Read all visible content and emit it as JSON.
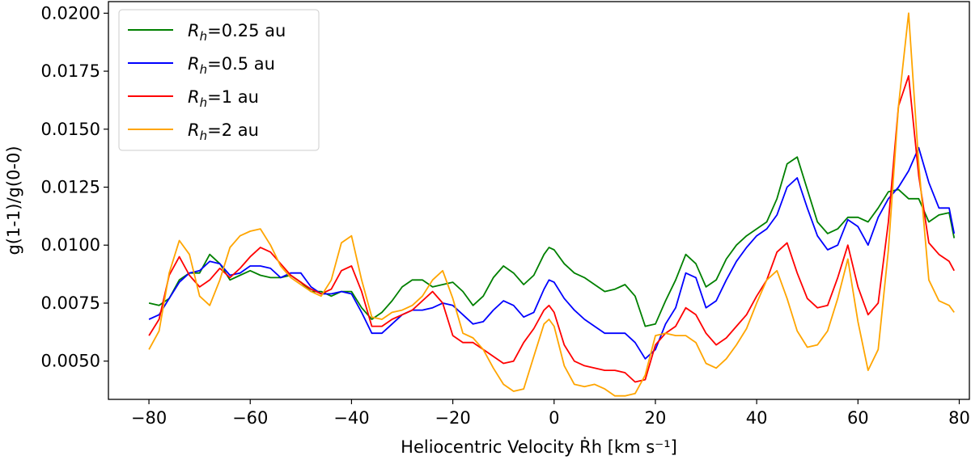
{
  "chart_data": {
    "type": "line",
    "title": "",
    "xlabel": "Heliocentric Velocity Ṙh [km s⁻¹]",
    "ylabel": "g(1-1)/g(0-0)",
    "xlim": [
      -88,
      82
    ],
    "ylim": [
      0.00335,
      0.0205
    ],
    "xticks": [
      -80,
      -60,
      -40,
      -20,
      0,
      20,
      40,
      60,
      80
    ],
    "xtick_labels": [
      "−80",
      "−60",
      "−40",
      "−20",
      "0",
      "20",
      "40",
      "60",
      "80"
    ],
    "yticks": [
      0.005,
      0.0075,
      0.01,
      0.0125,
      0.015,
      0.0175,
      0.02
    ],
    "ytick_labels": [
      "0.0050",
      "0.0075",
      "0.0100",
      "0.0125",
      "0.0150",
      "0.0175",
      "0.0200"
    ],
    "legend_position": "top-left",
    "series": [
      {
        "name": "Rh=0.25 au",
        "legend_var": "R",
        "legend_sub": "h",
        "legend_rest": "=0.25 au",
        "color": "#008000",
        "x": [
          -80,
          -78,
          -76,
          -74,
          -72,
          -70,
          -68,
          -66,
          -64,
          -62,
          -60,
          -58,
          -56,
          -54,
          -52,
          -50,
          -48,
          -46,
          -44,
          -42,
          -40,
          -38,
          -36,
          -34,
          -32,
          -30,
          -28,
          -26,
          -24,
          -22,
          -20,
          -18,
          -16,
          -14,
          -12,
          -10,
          -8,
          -6,
          -4,
          -2,
          -1,
          0,
          2,
          4,
          6,
          8,
          10,
          12,
          14,
          16,
          18,
          20,
          22,
          24,
          26,
          28,
          30,
          32,
          34,
          36,
          38,
          40,
          42,
          44,
          46,
          48,
          50,
          52,
          54,
          56,
          58,
          60,
          62,
          64,
          66,
          68,
          70,
          72,
          74,
          76,
          78,
          79
        ],
        "values": [
          0.0075,
          0.0074,
          0.0077,
          0.0085,
          0.0088,
          0.0088,
          0.0096,
          0.0092,
          0.0085,
          0.0087,
          0.0089,
          0.0087,
          0.0086,
          0.0086,
          0.0087,
          0.0084,
          0.008,
          0.008,
          0.0078,
          0.008,
          0.008,
          0.0073,
          0.0068,
          0.0071,
          0.0076,
          0.0082,
          0.0085,
          0.0085,
          0.0082,
          0.0083,
          0.0084,
          0.008,
          0.0074,
          0.0078,
          0.0086,
          0.0091,
          0.0088,
          0.0083,
          0.0087,
          0.0096,
          0.0099,
          0.0098,
          0.0092,
          0.0088,
          0.0086,
          0.0083,
          0.008,
          0.0081,
          0.0083,
          0.0078,
          0.0065,
          0.0066,
          0.0076,
          0.0085,
          0.0096,
          0.0092,
          0.0082,
          0.0085,
          0.0094,
          0.01,
          0.0104,
          0.0107,
          0.011,
          0.012,
          0.0135,
          0.0138,
          0.0124,
          0.011,
          0.0105,
          0.0107,
          0.0112,
          0.0112,
          0.011,
          0.0116,
          0.0123,
          0.0124,
          0.012,
          0.012,
          0.011,
          0.0113,
          0.0114,
          0.0103
        ]
      },
      {
        "name": "Rh=0.5 au",
        "legend_var": "R",
        "legend_sub": "h",
        "legend_rest": "=0.5 au",
        "color": "#0000ff",
        "x": [
          -80,
          -78,
          -76,
          -74,
          -72,
          -70,
          -68,
          -66,
          -64,
          -62,
          -60,
          -58,
          -56,
          -54,
          -52,
          -50,
          -48,
          -46,
          -44,
          -42,
          -40,
          -38,
          -36,
          -34,
          -32,
          -30,
          -28,
          -26,
          -24,
          -22,
          -20,
          -18,
          -16,
          -14,
          -12,
          -10,
          -8,
          -6,
          -4,
          -2,
          -1,
          0,
          2,
          4,
          6,
          8,
          10,
          12,
          14,
          16,
          18,
          20,
          22,
          24,
          26,
          28,
          30,
          32,
          34,
          36,
          38,
          40,
          42,
          44,
          46,
          48,
          50,
          52,
          54,
          56,
          58,
          60,
          62,
          64,
          66,
          68,
          70,
          72,
          74,
          76,
          78,
          79
        ],
        "values": [
          0.0068,
          0.007,
          0.0077,
          0.0084,
          0.0088,
          0.0089,
          0.0093,
          0.0092,
          0.0087,
          0.0088,
          0.0091,
          0.0091,
          0.009,
          0.0086,
          0.0088,
          0.0088,
          0.0082,
          0.0079,
          0.0079,
          0.008,
          0.0079,
          0.0071,
          0.0062,
          0.0062,
          0.0066,
          0.007,
          0.0072,
          0.0072,
          0.0073,
          0.0075,
          0.0074,
          0.007,
          0.0066,
          0.0067,
          0.0072,
          0.0076,
          0.0074,
          0.0069,
          0.0071,
          0.0081,
          0.0085,
          0.0084,
          0.0077,
          0.0072,
          0.0068,
          0.0065,
          0.0062,
          0.0062,
          0.0062,
          0.0058,
          0.0051,
          0.0055,
          0.0066,
          0.0073,
          0.0088,
          0.0086,
          0.0073,
          0.0076,
          0.0085,
          0.0093,
          0.0099,
          0.0104,
          0.0107,
          0.0113,
          0.0125,
          0.0129,
          0.0116,
          0.0104,
          0.0098,
          0.01,
          0.0111,
          0.0108,
          0.01,
          0.0112,
          0.012,
          0.0125,
          0.0132,
          0.0142,
          0.0127,
          0.0116,
          0.0116,
          0.0105
        ]
      },
      {
        "name": "Rh=1 au",
        "legend_var": "R",
        "legend_sub": "h",
        "legend_rest": "=1 au",
        "color": "#ff0000",
        "x": [
          -80,
          -78,
          -76,
          -74,
          -72,
          -70,
          -68,
          -66,
          -64,
          -62,
          -60,
          -58,
          -56,
          -54,
          -52,
          -50,
          -48,
          -46,
          -44,
          -42,
          -40,
          -38,
          -36,
          -34,
          -32,
          -30,
          -28,
          -26,
          -24,
          -22,
          -20,
          -18,
          -16,
          -14,
          -12,
          -10,
          -8,
          -6,
          -4,
          -2,
          -1,
          0,
          2,
          4,
          6,
          8,
          10,
          12,
          14,
          16,
          18,
          20,
          22,
          24,
          26,
          28,
          30,
          32,
          34,
          36,
          38,
          40,
          42,
          44,
          46,
          48,
          50,
          52,
          54,
          56,
          58,
          60,
          62,
          64,
          66,
          68,
          70,
          72,
          74,
          76,
          78,
          79
        ],
        "values": [
          0.0061,
          0.0068,
          0.0087,
          0.0095,
          0.0087,
          0.0082,
          0.0085,
          0.009,
          0.0086,
          0.009,
          0.0095,
          0.0099,
          0.0097,
          0.0092,
          0.0087,
          0.0084,
          0.0081,
          0.0079,
          0.0081,
          0.0089,
          0.0091,
          0.008,
          0.0065,
          0.0065,
          0.0068,
          0.007,
          0.0072,
          0.0076,
          0.008,
          0.0075,
          0.0061,
          0.0058,
          0.0058,
          0.0055,
          0.0052,
          0.0049,
          0.005,
          0.0058,
          0.0064,
          0.0072,
          0.0074,
          0.0071,
          0.0057,
          0.005,
          0.0048,
          0.0047,
          0.0046,
          0.0046,
          0.0045,
          0.0041,
          0.0042,
          0.0057,
          0.0062,
          0.0065,
          0.0073,
          0.007,
          0.0062,
          0.0057,
          0.006,
          0.0065,
          0.007,
          0.0078,
          0.0085,
          0.0097,
          0.0101,
          0.0088,
          0.0077,
          0.0073,
          0.0074,
          0.0086,
          0.01,
          0.0082,
          0.007,
          0.0075,
          0.011,
          0.016,
          0.0173,
          0.013,
          0.0101,
          0.0096,
          0.0093,
          0.0089
        ]
      },
      {
        "name": "Rh=2 au",
        "legend_var": "R",
        "legend_sub": "h",
        "legend_rest": "=2 au",
        "color": "#ffa500",
        "x": [
          -80,
          -78,
          -76,
          -74,
          -72,
          -70,
          -68,
          -66,
          -64,
          -62,
          -60,
          -58,
          -56,
          -54,
          -52,
          -50,
          -48,
          -46,
          -44,
          -42,
          -40,
          -38,
          -36,
          -34,
          -32,
          -30,
          -28,
          -26,
          -24,
          -22,
          -20,
          -18,
          -16,
          -14,
          -12,
          -10,
          -8,
          -6,
          -4,
          -2,
          -1,
          0,
          2,
          4,
          6,
          8,
          10,
          12,
          14,
          16,
          18,
          20,
          22,
          24,
          26,
          28,
          30,
          32,
          34,
          36,
          38,
          40,
          42,
          44,
          46,
          48,
          50,
          52,
          54,
          56,
          58,
          60,
          62,
          64,
          66,
          68,
          70,
          72,
          74,
          76,
          78,
          79
        ],
        "values": [
          0.0055,
          0.0063,
          0.0088,
          0.0102,
          0.0096,
          0.0078,
          0.0074,
          0.0085,
          0.0099,
          0.0104,
          0.0106,
          0.0107,
          0.01,
          0.0091,
          0.0086,
          0.0083,
          0.008,
          0.0078,
          0.0085,
          0.0101,
          0.0104,
          0.0085,
          0.0069,
          0.0068,
          0.0071,
          0.0072,
          0.0074,
          0.0078,
          0.0085,
          0.0089,
          0.0077,
          0.0062,
          0.006,
          0.0055,
          0.0047,
          0.004,
          0.0037,
          0.0038,
          0.0052,
          0.0066,
          0.0068,
          0.0065,
          0.0048,
          0.004,
          0.0039,
          0.004,
          0.0038,
          0.0035,
          0.0035,
          0.0036,
          0.0044,
          0.0061,
          0.0062,
          0.0061,
          0.0061,
          0.0058,
          0.0049,
          0.0047,
          0.0051,
          0.0057,
          0.0064,
          0.0075,
          0.0085,
          0.0089,
          0.0077,
          0.0063,
          0.0056,
          0.0057,
          0.0063,
          0.0077,
          0.0094,
          0.0067,
          0.0046,
          0.0055,
          0.0098,
          0.016,
          0.02,
          0.0135,
          0.0085,
          0.0076,
          0.0074,
          0.0071
        ]
      }
    ]
  }
}
